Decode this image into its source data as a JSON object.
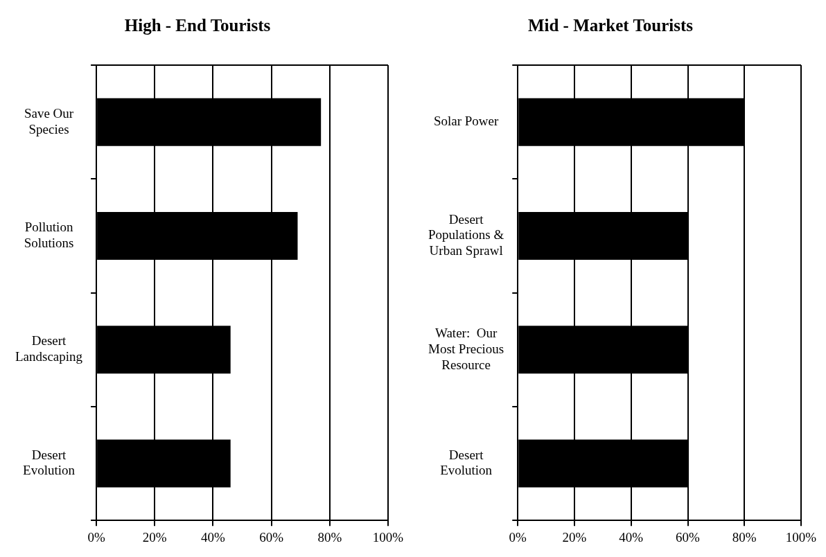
{
  "chart_data": [
    {
      "type": "bar",
      "orientation": "horizontal",
      "title": "High - End Tourists",
      "categories": [
        "Save Our\nSpecies",
        "Pollution\nSolutions",
        "Desert\nLandscaping",
        "Desert\nEvolution"
      ],
      "values": [
        77,
        69,
        46,
        46
      ],
      "color": "#000000",
      "xlim": [
        0,
        100
      ],
      "xticks": [
        {
          "value": 0,
          "label": "0%"
        },
        {
          "value": 20,
          "label": "20%"
        },
        {
          "value": 40,
          "label": "40%"
        },
        {
          "value": 60,
          "label": "60%"
        },
        {
          "value": 80,
          "label": "80%"
        },
        {
          "value": 100,
          "label": "100%"
        }
      ],
      "grid": "x",
      "legend": false
    },
    {
      "type": "bar",
      "orientation": "horizontal",
      "title": "Mid - Market Tourists",
      "categories": [
        "Solar Power",
        "Desert\nPopulations &\nUrban Sprawl",
        "Water:  Our\nMost Precious\nResource",
        "Desert\nEvolution"
      ],
      "values": [
        80,
        60,
        60,
        60
      ],
      "color": "#000000",
      "xlim": [
        0,
        100
      ],
      "xticks": [
        {
          "value": 0,
          "label": "0%"
        },
        {
          "value": 20,
          "label": "20%"
        },
        {
          "value": 40,
          "label": "40%"
        },
        {
          "value": 60,
          "label": "60%"
        },
        {
          "value": 80,
          "label": "80%"
        },
        {
          "value": 100,
          "label": "100%"
        }
      ],
      "grid": "x",
      "legend": false
    }
  ]
}
